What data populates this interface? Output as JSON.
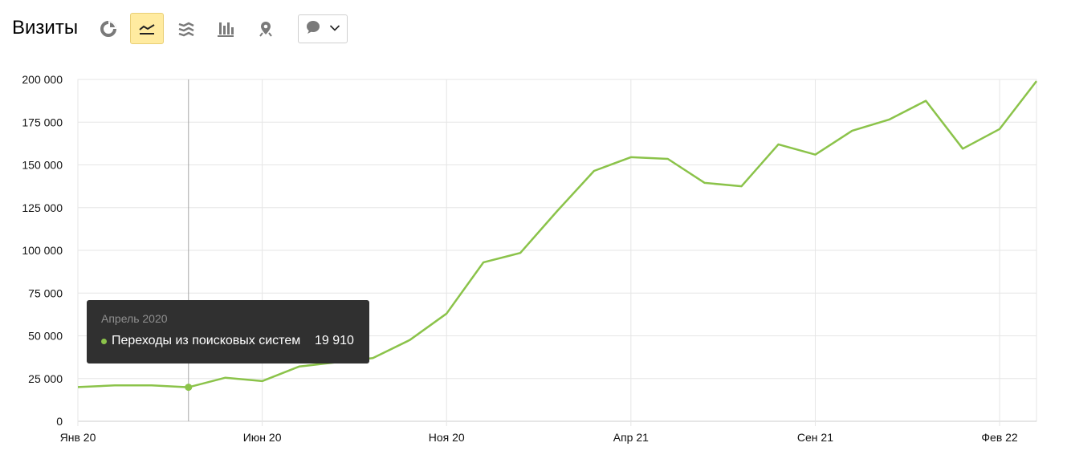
{
  "header": {
    "title": "Визиты",
    "buttons": [
      {
        "icon": "pie-chart-icon",
        "active": false
      },
      {
        "icon": "line-chart-icon",
        "active": true
      },
      {
        "icon": "area-chart-icon",
        "active": false
      },
      {
        "icon": "bar-chart-icon",
        "active": false
      },
      {
        "icon": "map-pin-icon",
        "active": false
      }
    ],
    "annotations_dropdown": {
      "icon": "speech-bubble-icon",
      "caret": "chevron-down-icon"
    }
  },
  "colors": {
    "series": "#8bc34a",
    "grid": "#e6e6e6",
    "active_button_bg": "#ffeba0",
    "tooltip_bg": "#303030",
    "hover_line": "#a6a6a6"
  },
  "tooltip": {
    "date": "Апрель 2020",
    "series_name": "Переходы из поисковых систем",
    "value": "19 910"
  },
  "chart_data": {
    "type": "line",
    "title": "",
    "xlabel": "",
    "ylabel": "",
    "ylim": [
      0,
      200000
    ],
    "y_ticks": [
      0,
      25000,
      50000,
      75000,
      100000,
      125000,
      150000,
      175000,
      200000
    ],
    "y_tick_labels": [
      "0",
      "25 000",
      "50 000",
      "75 000",
      "100 000",
      "125 000",
      "150 000",
      "175 000",
      "200 000"
    ],
    "x_ticks": [
      "Янв 20",
      "Июн 20",
      "Ноя 20",
      "Апр 21",
      "Сен 21",
      "Фев 22"
    ],
    "x_tick_months": [
      "2020-01",
      "2020-06",
      "2020-11",
      "2021-04",
      "2021-09",
      "2022-02"
    ],
    "grid": true,
    "legend": "none",
    "hover_month": "2020-04",
    "x": [
      "2020-01",
      "2020-02",
      "2020-03",
      "2020-04",
      "2020-05",
      "2020-06",
      "2020-07",
      "2020-08",
      "2020-09",
      "2020-10",
      "2020-11",
      "2020-12",
      "2021-01",
      "2021-02",
      "2021-03",
      "2021-04",
      "2021-05",
      "2021-06",
      "2021-07",
      "2021-08",
      "2021-09",
      "2021-10",
      "2021-11",
      "2021-12",
      "2022-01",
      "2022-02",
      "2022-03"
    ],
    "series": [
      {
        "name": "Переходы из поисковых систем",
        "values": [
          20000,
          21000,
          21000,
          19910,
          25500,
          23500,
          32000,
          34500,
          37000,
          47500,
          63000,
          93000,
          98500,
          123000,
          146500,
          154500,
          153500,
          139500,
          137500,
          162000,
          156000,
          170000,
          176500,
          187500,
          159500,
          171000,
          199000
        ]
      }
    ]
  }
}
